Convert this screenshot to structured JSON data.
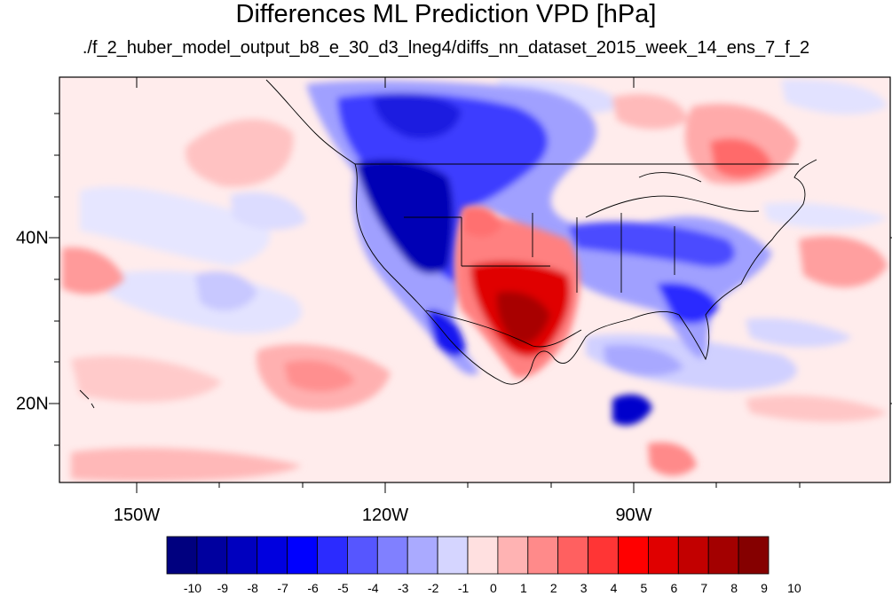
{
  "title": "Differences ML Prediction VPD [hPa]",
  "subtitle": "./f_2_huber_model_output_b8_e_30_d3_lneg4/diffs_nn_dataset_2015_week_14_ens_7_f_2",
  "axes": {
    "lon_labels": [
      "150W",
      "120W",
      "90W"
    ],
    "lat_labels": [
      "40N",
      "20N"
    ]
  },
  "colorbar": {
    "labels": [
      "-10",
      "-9",
      "-8",
      "-7",
      "-6",
      "-5",
      "-4",
      "-3",
      "-2",
      "-1",
      "0",
      "1",
      "2",
      "3",
      "4",
      "5",
      "6",
      "7",
      "8",
      "9",
      "10"
    ],
    "colors": [
      "#00007f",
      "#00009f",
      "#0000bf",
      "#0000df",
      "#0000ff",
      "#2b2bff",
      "#5656ff",
      "#8080ff",
      "#aaaaff",
      "#d5d5ff",
      "#ffe0e0",
      "#ffb3b3",
      "#ff8a8a",
      "#ff6060",
      "#ff3535",
      "#ff0000",
      "#e00000",
      "#c20000",
      "#a30000",
      "#850000"
    ]
  }
}
